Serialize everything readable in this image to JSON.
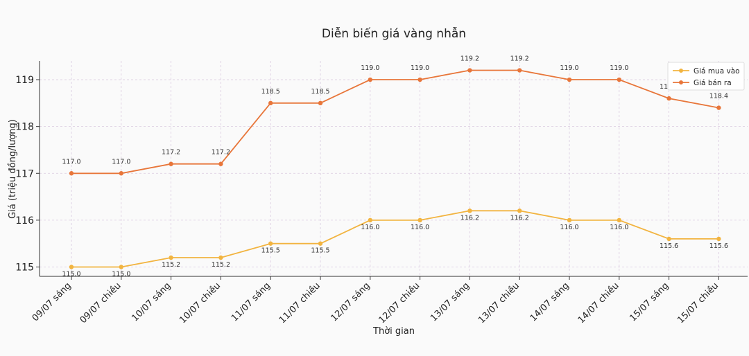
{
  "chart_data": {
    "type": "line",
    "title": "Diễn biến giá vàng nhẫn",
    "xlabel": "Thời gian",
    "ylabel": "Giá (triệu đồng/lượng)",
    "categories": [
      "09/07 sáng",
      "09/07 chiều",
      "10/07 sáng",
      "10/07 chiều",
      "11/07 sáng",
      "11/07 chiều",
      "12/07 sáng",
      "12/07 chiều",
      "13/07 sáng",
      "13/07 chiều",
      "14/07 sáng",
      "14/07 chiều",
      "15/07 sáng",
      "15/07 chiều"
    ],
    "series": [
      {
        "name": "Giá mua vào",
        "color": "#f2b440",
        "values": [
          115.0,
          115.0,
          115.2,
          115.2,
          115.5,
          115.5,
          116.0,
          116.0,
          116.2,
          116.2,
          116.0,
          116.0,
          115.6,
          115.6
        ],
        "labels": [
          "115.0",
          "115.0",
          "115.2",
          "115.2",
          "115.5",
          "115.5",
          "116.0",
          "116.0",
          "116.2",
          "116.2",
          "116.0",
          "116.0",
          "115.6",
          "115.6"
        ]
      },
      {
        "name": "Giá bán ra",
        "color": "#e8763a",
        "values": [
          117.0,
          117.0,
          117.2,
          117.2,
          118.5,
          118.5,
          119.0,
          119.0,
          119.2,
          119.2,
          119.0,
          119.0,
          118.6,
          118.4
        ],
        "labels": [
          "117.0",
          "117.0",
          "117.2",
          "117.2",
          "118.5",
          "118.5",
          "119.0",
          "119.0",
          "119.2",
          "119.2",
          "119.0",
          "119.0",
          "118.6",
          "118.4"
        ]
      }
    ],
    "yticks": [
      "115",
      "116",
      "117",
      "118",
      "119"
    ],
    "ylim": [
      114.8,
      119.4
    ],
    "grid": true,
    "legend_position": "top-right"
  }
}
